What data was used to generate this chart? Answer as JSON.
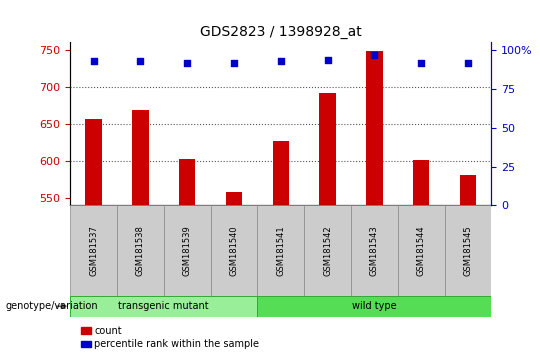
{
  "title": "GDS2823 / 1398928_at",
  "samples": [
    "GSM181537",
    "GSM181538",
    "GSM181539",
    "GSM181540",
    "GSM181541",
    "GSM181542",
    "GSM181543",
    "GSM181544",
    "GSM181545"
  ],
  "counts": [
    657,
    669,
    603,
    558,
    627,
    692,
    748,
    601,
    581
  ],
  "percentile_ranks": [
    93,
    93,
    92,
    92,
    93,
    94,
    97,
    92,
    92
  ],
  "ylim_left": [
    540,
    760
  ],
  "ylim_right": [
    0,
    105
  ],
  "yticks_left": [
    550,
    600,
    650,
    700,
    750
  ],
  "yticks_right": [
    0,
    25,
    50,
    75,
    100
  ],
  "bar_color": "#cc0000",
  "dot_color": "#0000cc",
  "group_colors": [
    "#99ee99",
    "#55dd55"
  ],
  "group_labels": [
    "transgenic mutant",
    "wild type"
  ],
  "group_ranges": [
    [
      0,
      3
    ],
    [
      4,
      8
    ]
  ],
  "genotype_label": "genotype/variation",
  "legend_items": [
    {
      "color": "#cc0000",
      "label": "count"
    },
    {
      "color": "#0000cc",
      "label": "percentile rank within the sample"
    }
  ],
  "dotted_line_color": "#555555",
  "ylabel_left_color": "#cc0000",
  "ylabel_right_color": "#0000cc",
  "background_color": "#ffffff",
  "xticklabel_bg": "#cccccc",
  "bar_bottom": 540
}
